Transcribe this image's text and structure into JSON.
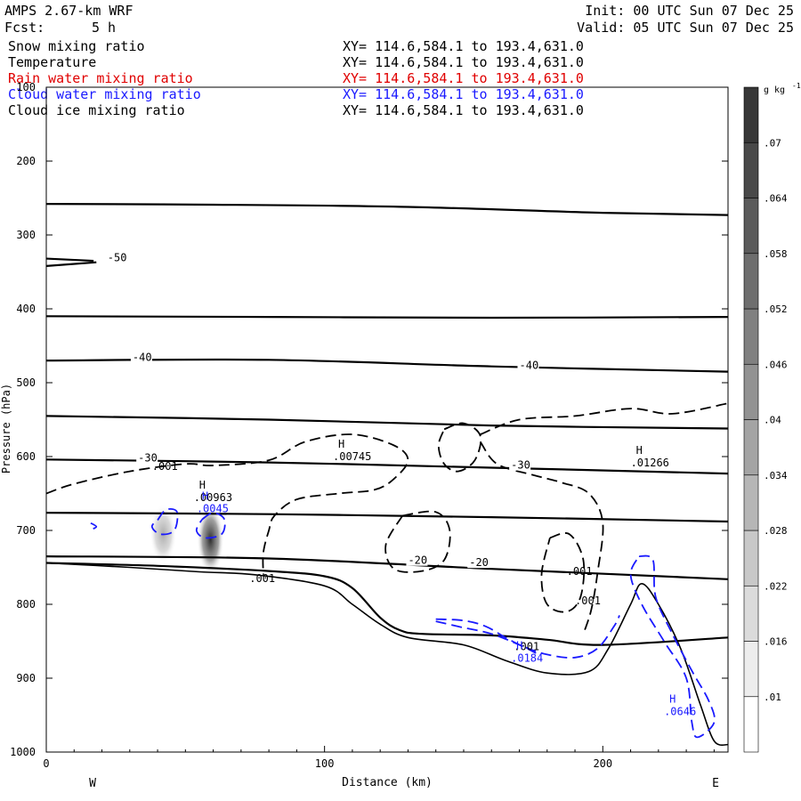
{
  "header": {
    "model": "AMPS 2.67-km WRF",
    "fcst_label": "Fcst:",
    "fcst_value": "5 h",
    "init": "Init: 00 UTC Sun 07 Dec 25",
    "valid": "Valid: 05 UTC Sun 07 Dec 25"
  },
  "fields": [
    {
      "name": "Snow mixing ratio",
      "xy": "XY= 114.6,584.1 to 193.4,631.0",
      "color": "#000000"
    },
    {
      "name": "Temperature",
      "xy": "XY= 114.6,584.1 to 193.4,631.0",
      "color": "#000000"
    },
    {
      "name": "Rain water mixing ratio",
      "xy": "XY= 114.6,584.1 to 193.4,631.0",
      "color": "#e00000"
    },
    {
      "name": "Cloud water mixing ratio",
      "xy": "XY= 114.6,584.1 to 193.4,631.0",
      "color": "#1a1aff"
    },
    {
      "name": "Cloud ice mixing ratio",
      "xy": "XY= 114.6,584.1 to 193.4,631.0",
      "color": "#000000"
    }
  ],
  "chart_data": {
    "type": "cross-section contour",
    "xlabel": "Distance (km)",
    "ylabel": "Pressure (hPa)",
    "xlim": [
      0,
      245
    ],
    "ylim": [
      1000,
      100
    ],
    "xticks": [
      0,
      100,
      200
    ],
    "yticks": [
      100,
      200,
      300,
      400,
      500,
      600,
      700,
      800,
      900,
      1000
    ],
    "x_end_labels": [
      "W",
      "E"
    ],
    "colorbar": {
      "unit": "g kg",
      "unit_exp": "-1",
      "ticks": [
        ".01",
        ".016",
        ".022",
        ".028",
        ".034",
        ".04",
        ".046",
        ".052",
        ".058",
        ".064",
        ".07"
      ]
    },
    "temperature_contours": [
      {
        "label": "-50",
        "points": [
          [
            0,
            332
          ],
          [
            17,
            335
          ]
        ],
        "label_at": [
          22,
          333
        ]
      },
      {
        "label": "-50",
        "points": [
          [
            0,
            342
          ],
          [
            18,
            337
          ]
        ]
      },
      {
        "points": [
          [
            0,
            258
          ],
          [
            60,
            259
          ],
          [
            130,
            262
          ],
          [
            200,
            270
          ],
          [
            245,
            273
          ]
        ]
      },
      {
        "points": [
          [
            0,
            410
          ],
          [
            80,
            411
          ],
          [
            160,
            412
          ],
          [
            245,
            411
          ]
        ]
      },
      {
        "label": "-40",
        "points": [
          [
            0,
            470
          ],
          [
            80,
            469
          ],
          [
            160,
            478
          ],
          [
            245,
            485
          ]
        ],
        "label_at": [
          31,
          468
        ],
        "label2": "-40",
        "label2_at": [
          170,
          479
        ]
      },
      {
        "points": [
          [
            0,
            545
          ],
          [
            80,
            550
          ],
          [
            160,
            558
          ],
          [
            245,
            562
          ]
        ]
      },
      {
        "label": "-30",
        "points": [
          [
            0,
            604
          ],
          [
            80,
            608
          ],
          [
            160,
            615
          ],
          [
            245,
            623
          ]
        ],
        "label_at": [
          33,
          604
        ],
        "label2": "-30",
        "label2_at": [
          167,
          614
        ]
      },
      {
        "points": [
          [
            0,
            676
          ],
          [
            80,
            678
          ],
          [
            160,
            682
          ],
          [
            245,
            688
          ]
        ]
      },
      {
        "label": "-20",
        "points": [
          [
            0,
            735
          ],
          [
            80,
            738
          ],
          [
            160,
            752
          ],
          [
            245,
            766
          ]
        ],
        "label_at": [
          130,
          743
        ],
        "label2": "-20",
        "label2_at": [
          152,
          746
        ]
      },
      {
        "points": [
          [
            0,
            744
          ],
          [
            40,
            748
          ],
          [
            80,
            755
          ],
          [
            100,
            762
          ],
          [
            110,
            778
          ],
          [
            120,
            818
          ],
          [
            127,
            835
          ],
          [
            135,
            840
          ],
          [
            160,
            842
          ],
          [
            180,
            848
          ],
          [
            200,
            855
          ],
          [
            245,
            845
          ]
        ]
      }
    ],
    "terrain": [
      [
        0,
        744
      ],
      [
        30,
        750
      ],
      [
        55,
        756
      ],
      [
        75,
        760
      ],
      [
        100,
        775
      ],
      [
        110,
        800
      ],
      [
        120,
        827
      ],
      [
        130,
        845
      ],
      [
        150,
        855
      ],
      [
        165,
        876
      ],
      [
        180,
        893
      ],
      [
        195,
        891
      ],
      [
        202,
        860
      ],
      [
        210,
        800
      ],
      [
        214,
        772
      ],
      [
        220,
        800
      ],
      [
        228,
        860
      ],
      [
        235,
        935
      ],
      [
        240,
        985
      ],
      [
        245,
        990
      ]
    ],
    "cloud_ice_contours_label": ".001",
    "cloud_ice_maxima": [
      {
        "label": "H",
        "value": ".00745",
        "at": [
          103,
          605
        ]
      },
      {
        "label": "H",
        "value": ".00963",
        "at": [
          53,
          660
        ]
      },
      {
        "label": "H",
        "value": ".01266",
        "at": [
          210,
          613
        ]
      }
    ],
    "cloud_water_maxima": [
      {
        "label": "H",
        "value": ".0045",
        "at": [
          54,
          675
        ]
      },
      {
        "label": "H",
        "value": ".0184",
        "at": [
          167,
          878
        ]
      },
      {
        "label": "H",
        "value": ".0646",
        "at": [
          222,
          950
        ]
      }
    ],
    "snow_columns": [
      {
        "x": 42,
        "p_top": 670,
        "p_bottom": 740,
        "max": 0.03
      },
      {
        "x": 59,
        "p_top": 670,
        "p_bottom": 755,
        "max": 0.075
      }
    ],
    "contour_value_labels": [
      {
        "text": ".001",
        "at": [
          38,
          618
        ]
      },
      {
        "text": ".001",
        "at": [
          73,
          770
        ]
      },
      {
        "text": ".001",
        "at": [
          187,
          760
        ]
      },
      {
        "text": ".001",
        "at": [
          190,
          800
        ]
      },
      {
        "text": ".001",
        "at": [
          168,
          862
        ]
      }
    ]
  }
}
